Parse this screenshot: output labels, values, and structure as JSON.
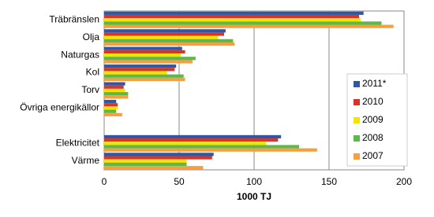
{
  "chart_data": {
    "type": "barh",
    "categories": [
      "Träbränslen",
      "Olja",
      "Naturgas",
      "Kol",
      "Torv",
      "Övriga energikällor",
      null,
      "Elektricitet",
      "Värme"
    ],
    "series": [
      {
        "name": "2011*",
        "color": "#2e58a6",
        "values": [
          173,
          81,
          52,
          48,
          14,
          8,
          null,
          118,
          73
        ]
      },
      {
        "name": "2010",
        "color": "#d9342b",
        "values": [
          170,
          80,
          54,
          47,
          13,
          9,
          null,
          116,
          72
        ]
      },
      {
        "name": "2009",
        "color": "#f2e600",
        "values": [
          171,
          76,
          51,
          42,
          14,
          9,
          null,
          108,
          55
        ]
      },
      {
        "name": "2008",
        "color": "#5cb84a",
        "values": [
          185,
          86,
          61,
          53,
          16,
          8,
          null,
          130,
          55
        ]
      },
      {
        "name": "2007",
        "color": "#f5a040",
        "values": [
          193,
          87,
          59,
          54,
          16,
          12,
          null,
          142,
          66
        ]
      }
    ],
    "xlim": [
      0,
      200
    ],
    "xticks": [
      0,
      50,
      100,
      150,
      200
    ],
    "xlabel": "1000 TJ",
    "grid": true
  }
}
